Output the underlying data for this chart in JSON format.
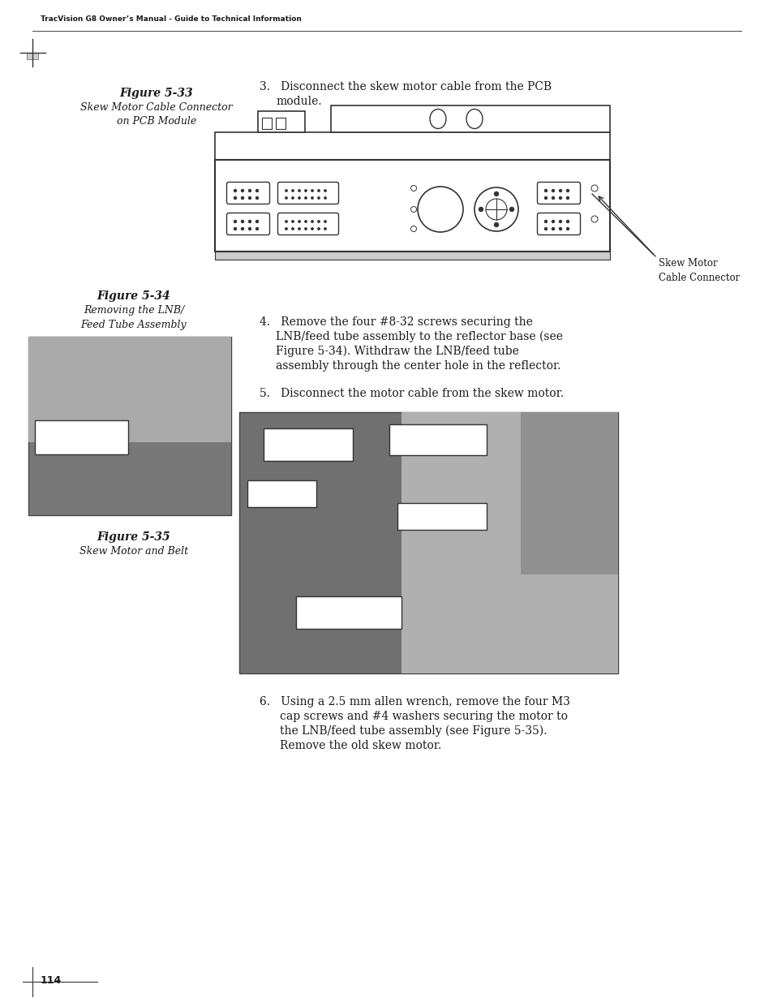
{
  "background_color": "#ffffff",
  "header_text": "TracVision G8 Owner’s Manual - Guide to Technical Information",
  "page_number": "114",
  "figure33_title": "Figure 5-33",
  "figure33_subtitle1": "Skew Motor Cable Connector",
  "figure33_subtitle2": "on PCB Module",
  "figure34_title": "Figure 5-34",
  "figure34_subtitle1": "Removing the LNB/",
  "figure34_subtitle2": "Feed Tube Assembly",
  "figure35_title": "Figure 5-35",
  "figure35_subtitle": "Skew Motor and Belt",
  "skew_motor_label": "Skew Motor\nCable Connector",
  "text_color": "#1a1a1a",
  "line_color": "#333333",
  "photo_bg": "#888888",
  "photo_bg_dark": "#666666"
}
